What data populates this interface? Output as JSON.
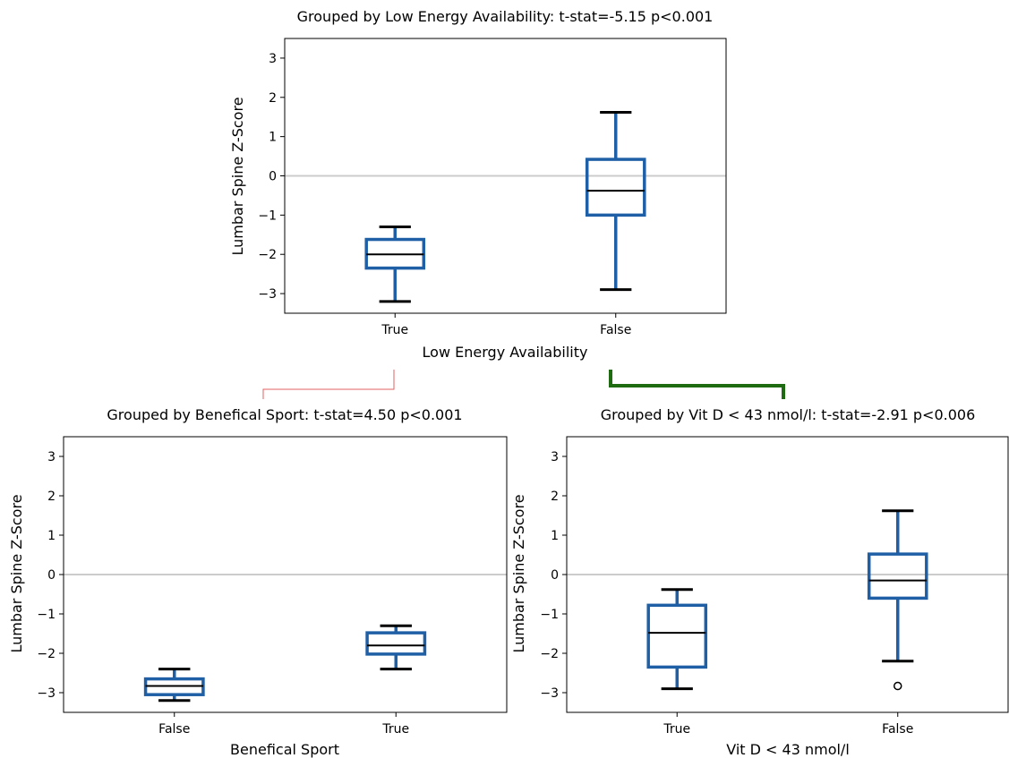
{
  "chart_data": [
    {
      "id": "top",
      "type": "boxplot",
      "title": "Grouped by Low Energy Availability: t-stat=-5.15 p<0.001",
      "xlabel": "Low Energy Availability",
      "ylabel": "Lumbar Spine Z-Score",
      "ylim": [
        -3.5,
        3.5
      ],
      "yticks": [
        -3,
        -2,
        -1,
        0,
        1,
        2,
        3
      ],
      "reference_line": 0,
      "grid": false,
      "categories": [
        "True",
        "False"
      ],
      "boxes": [
        {
          "category": "True",
          "whisker_low": -3.2,
          "q1": -2.35,
          "median": -2.0,
          "q3": -1.62,
          "whisker_high": -1.3,
          "outliers": []
        },
        {
          "category": "False",
          "whisker_low": -2.9,
          "q1": -1.0,
          "median": -0.38,
          "q3": 0.42,
          "whisker_high": 1.62,
          "outliers": []
        }
      ]
    },
    {
      "id": "left",
      "type": "boxplot",
      "title": "Grouped by Benefical Sport: t-stat=4.50 p<0.001",
      "xlabel": "Benefical Sport",
      "ylabel": "Lumbar Spine Z-Score",
      "ylim": [
        -3.5,
        3.5
      ],
      "yticks": [
        -3,
        -2,
        -1,
        0,
        1,
        2,
        3
      ],
      "reference_line": 0,
      "grid": false,
      "categories": [
        "False",
        "True"
      ],
      "boxes": [
        {
          "category": "False",
          "whisker_low": -3.2,
          "q1": -3.05,
          "median": -2.83,
          "q3": -2.65,
          "whisker_high": -2.4,
          "outliers": []
        },
        {
          "category": "True",
          "whisker_low": -2.4,
          "q1": -2.02,
          "median": -1.8,
          "q3": -1.48,
          "whisker_high": -1.3,
          "outliers": []
        }
      ]
    },
    {
      "id": "right",
      "type": "boxplot",
      "title": "Grouped by Vit D < 43 nmol/l: t-stat=-2.91 p<0.006",
      "xlabel": "Vit D < 43 nmol/l",
      "ylabel": "Lumbar Spine Z-Score",
      "ylim": [
        -3.5,
        3.5
      ],
      "yticks": [
        -3,
        -2,
        -1,
        0,
        1,
        2,
        3
      ],
      "reference_line": 0,
      "grid": false,
      "categories": [
        "True",
        "False"
      ],
      "boxes": [
        {
          "category": "True",
          "whisker_low": -2.9,
          "q1": -2.35,
          "median": -1.48,
          "q3": -0.78,
          "whisker_high": -0.38,
          "outliers": []
        },
        {
          "category": "False",
          "whisker_low": -2.2,
          "q1": -0.6,
          "median": -0.15,
          "q3": 0.52,
          "whisker_high": 1.62,
          "outliers": [
            -2.83
          ]
        }
      ]
    }
  ],
  "colors": {
    "box": "#1f5fa6",
    "median": "#000000",
    "reference_line": "#cccccc",
    "connector_red": "#e06060",
    "connector_green": "#1f6b12",
    "axes": "#000000"
  }
}
